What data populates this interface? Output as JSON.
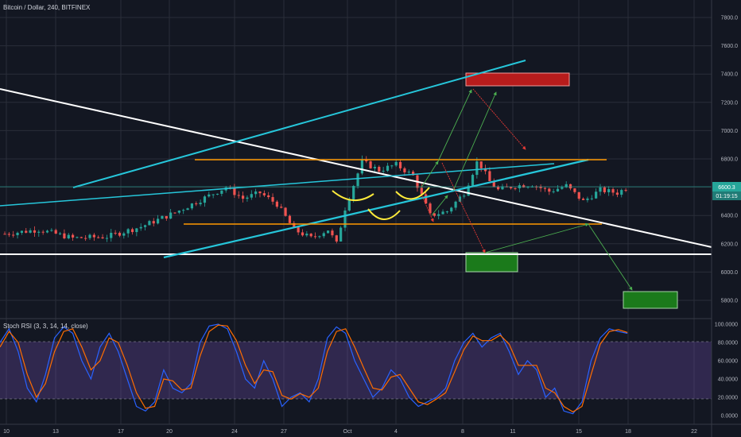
{
  "chart_data": [
    {
      "type": "candlestick",
      "title": "Bitcoin / Dollar, 240, BITFINEX",
      "ylim": [
        5700,
        7900
      ],
      "y_ticks": [
        5800,
        6000,
        6200,
        6400,
        6600,
        6800,
        7000,
        7200,
        7400,
        7600,
        7800
      ],
      "y_tick_labels": [
        "5800.0",
        "6000.0",
        "6200.0",
        "6400.0",
        "6600.0",
        "6800.0",
        "7000.0",
        "7200.0",
        "7400.0",
        "7600.0",
        "7800.0"
      ],
      "x_ticks": [
        "10",
        "13",
        "17",
        "20",
        "24",
        "27",
        "Oct",
        "4",
        "8",
        "11",
        "15",
        "18",
        "22"
      ],
      "last_price": "6600.3",
      "countdown": "01:19:15",
      "price_path": [
        [
          0,
          6270
        ],
        [
          2,
          6300
        ],
        [
          4,
          6240
        ],
        [
          6,
          6250
        ],
        [
          8,
          6320
        ],
        [
          10,
          6420
        ],
        [
          12,
          6540
        ],
        [
          13,
          6600
        ],
        [
          14,
          6520
        ],
        [
          15,
          6560
        ],
        [
          16,
          6480
        ],
        [
          17,
          6300
        ],
        [
          18,
          6240
        ],
        [
          19,
          6300
        ],
        [
          19.5,
          6200
        ],
        [
          20,
          6450
        ],
        [
          21,
          6780
        ],
        [
          22,
          6720
        ],
        [
          23,
          6760
        ],
        [
          24,
          6680
        ],
        [
          25,
          6400
        ],
        [
          26,
          6430
        ],
        [
          27,
          6560
        ],
        [
          27.8,
          6790
        ],
        [
          28.5,
          6640
        ],
        [
          29,
          6580
        ],
        [
          30,
          6610
        ],
        [
          31,
          6620
        ],
        [
          32,
          6570
        ],
        [
          33,
          6610
        ],
        [
          34,
          6500
        ],
        [
          35,
          6580
        ],
        [
          36,
          6560
        ],
        [
          36.6,
          6600
        ]
      ],
      "annotations": {
        "supply_zone": {
          "x": [
            8,
            12.5
          ],
          "y": [
            7310,
            7400
          ],
          "color": "#b71c1c"
        },
        "demand_zone_1": {
          "x": [
            8,
            11.0
          ],
          "y": [
            6000,
            6130
          ],
          "color": "#1b7a1b"
        },
        "demand_zone_2": {
          "x": [
            18.0,
            22.0
          ],
          "y": [
            5750,
            5870
          ],
          "color": "#1b7a1b"
        }
      }
    },
    {
      "type": "line",
      "title": "Stoch RSI (3, 3, 14, 14, close)",
      "ylim": [
        0,
        100
      ],
      "y_ticks": [
        0,
        20,
        40,
        60,
        80,
        100
      ],
      "y_tick_labels": [
        "0.0000",
        "20.0000",
        "40.0000",
        "60.0000",
        "80.0000",
        "100.0000"
      ],
      "bands": [
        20,
        80
      ],
      "series": [
        {
          "color": "#2962ff",
          "values": [
            80,
            95,
            70,
            30,
            15,
            45,
            85,
            97,
            90,
            60,
            40,
            75,
            90,
            70,
            40,
            10,
            5,
            15,
            50,
            30,
            25,
            35,
            80,
            98,
            100,
            95,
            70,
            40,
            30,
            60,
            40,
            10,
            20,
            25,
            15,
            40,
            85,
            97,
            90,
            60,
            40,
            20,
            30,
            50,
            40,
            20,
            10,
            15,
            20,
            30,
            60,
            80,
            90,
            75,
            85,
            90,
            70,
            45,
            60,
            50,
            20,
            30,
            5,
            2,
            15,
            60,
            85,
            95,
            92,
            90
          ]
        },
        {
          "color": "#ff6d00",
          "values": [
            75,
            92,
            80,
            45,
            20,
            35,
            70,
            92,
            95,
            75,
            50,
            60,
            85,
            80,
            55,
            25,
            8,
            10,
            40,
            38,
            28,
            30,
            65,
            92,
            99,
            98,
            82,
            55,
            35,
            50,
            48,
            22,
            18,
            24,
            20,
            30,
            70,
            92,
            95,
            75,
            52,
            30,
            28,
            42,
            45,
            30,
            15,
            12,
            18,
            25,
            48,
            72,
            87,
            82,
            82,
            88,
            78,
            55,
            55,
            55,
            30,
            25,
            10,
            4,
            10,
            45,
            78,
            92,
            94,
            91
          ]
        }
      ]
    }
  ]
}
